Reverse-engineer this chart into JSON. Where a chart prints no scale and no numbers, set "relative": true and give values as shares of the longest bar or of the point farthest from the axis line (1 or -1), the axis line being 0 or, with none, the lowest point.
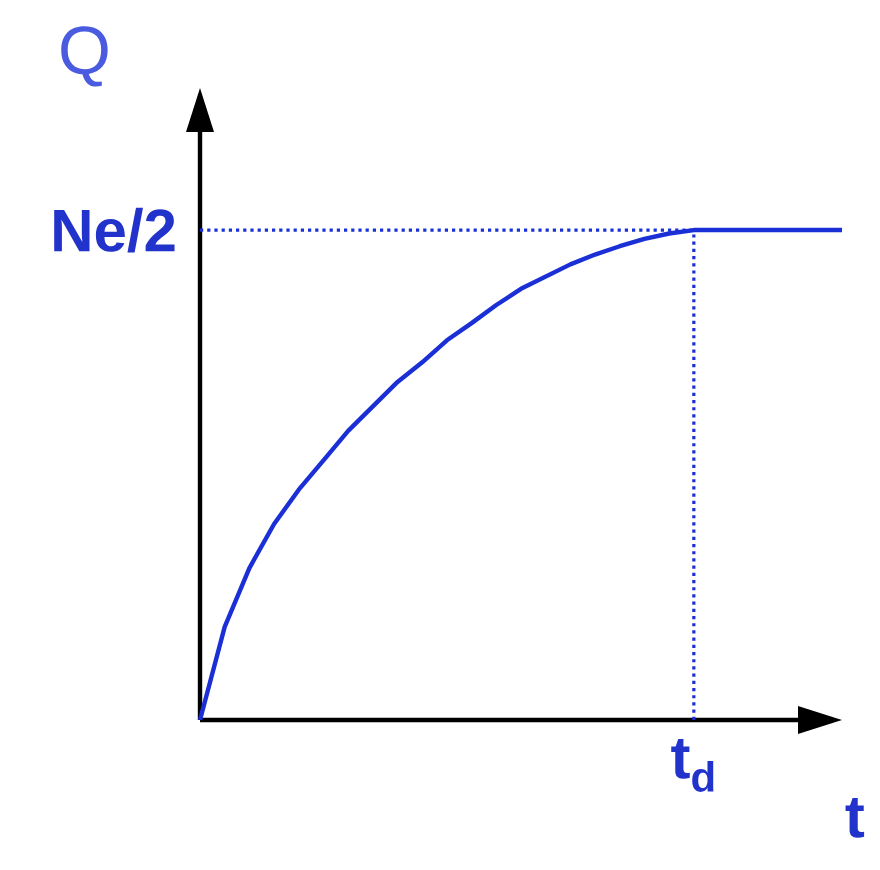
{
  "chart_data": {
    "type": "line",
    "relative": true,
    "xlabel": "t",
    "ylabel": "Q",
    "categories": [
      null,
      null,
      null,
      null,
      null,
      null,
      null,
      null,
      null,
      null,
      null,
      null,
      null,
      null,
      null,
      null,
      null,
      null,
      null,
      null,
      null,
      null,
      null,
      null,
      null,
      null,
      null
    ],
    "series": [
      {
        "color": "#1a2fd6",
        "values": [
          0,
          0.19,
          0.31,
          0.4,
          0.47,
          0.53,
          0.59,
          0.64,
          0.69,
          0.73,
          0.775,
          0.81,
          0.847,
          0.88,
          0.905,
          0.93,
          0.95,
          0.967,
          0.982,
          0.993,
          1,
          1,
          1,
          1,
          1,
          1,
          1
        ]
      }
    ],
    "ref_lines": [
      {
        "axis": "y",
        "value": 1,
        "label": "Ne/2",
        "color": "#1a2fd6",
        "line_style": "dotted"
      }
    ],
    "annotations": [
      "t$_{d}$"
    ]
  }
}
